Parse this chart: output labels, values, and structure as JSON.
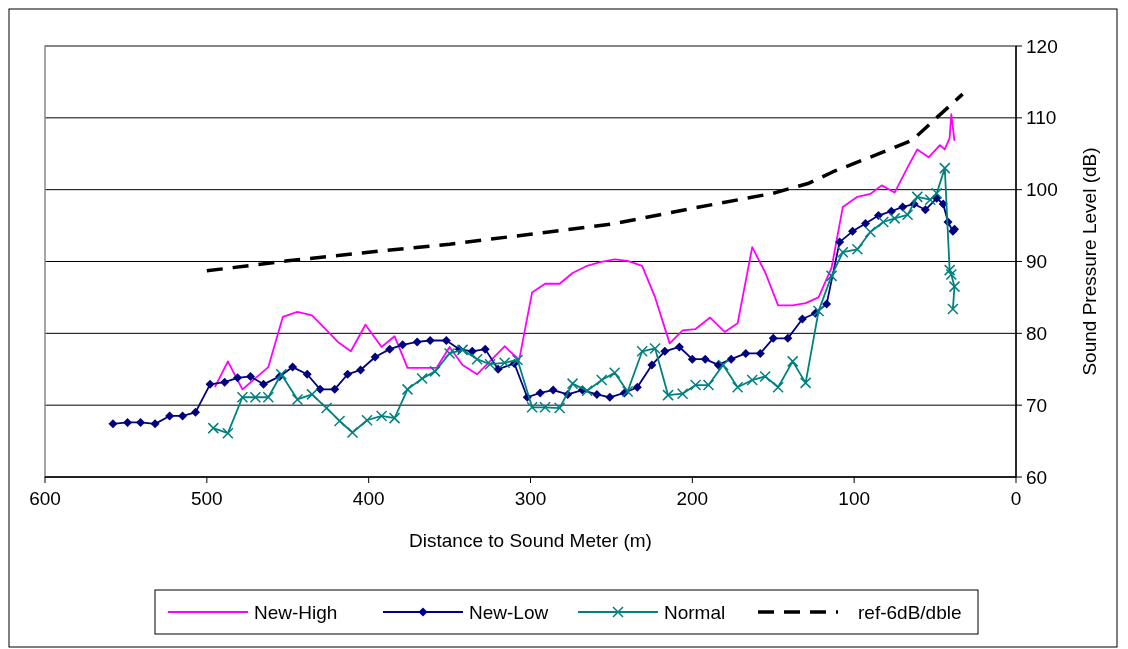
{
  "chart_data": {
    "type": "line",
    "xlabel": "Distance to Sound Meter (m)",
    "ylabel": "Sound Pressure Level (dB)",
    "xlim": [
      600,
      0
    ],
    "xticks": [
      600,
      500,
      400,
      300,
      200,
      100,
      0
    ],
    "ylim": [
      60,
      120
    ],
    "yticks": [
      60,
      70,
      80,
      90,
      100,
      110,
      120
    ],
    "grid": "y",
    "legend": "bottom",
    "series": [
      {
        "name": "New-High",
        "color": "#ff00ff",
        "marker": "none",
        "line_style": "solid",
        "x": [
          495,
          487,
          478,
          462,
          453,
          444,
          435,
          428,
          419,
          411,
          402,
          392,
          384,
          376,
          358,
          350,
          342,
          333,
          316,
          307,
          299,
          291,
          282,
          274,
          265,
          257,
          248,
          240,
          231,
          223,
          214,
          206,
          198,
          189,
          180,
          172,
          163,
          155,
          147,
          138,
          130,
          122,
          114,
          107,
          98,
          90,
          83,
          75,
          67,
          61,
          54,
          47,
          44,
          41,
          40,
          38
        ],
        "values": [
          72.5,
          76.1,
          72.2,
          75.3,
          82.3,
          83.0,
          82.5,
          80.9,
          78.8,
          77.5,
          81.2,
          78.1,
          79.6,
          75.2,
          75.2,
          78.1,
          75.6,
          74.3,
          78.2,
          76.3,
          85.7,
          86.9,
          86.9,
          88.4,
          89.4,
          89.9,
          90.3,
          90.1,
          89.4,
          85.0,
          78.6,
          80.4,
          80.6,
          82.2,
          80.2,
          81.4,
          92.0,
          88.5,
          83.9,
          83.9,
          84.2,
          85.0,
          89.1,
          97.6,
          99.0,
          99.4,
          100.6,
          99.6,
          103.1,
          105.6,
          104.5,
          106.2,
          105.6,
          107.2,
          110.5,
          106.8
        ]
      },
      {
        "name": "New-Low",
        "color": "#000080",
        "marker": "diamond",
        "line_style": "solid",
        "x": [
          558,
          549,
          541,
          532,
          523,
          515,
          507,
          498,
          489,
          481,
          473,
          465,
          455,
          447,
          438,
          430,
          421,
          413,
          405,
          396,
          387,
          379,
          370,
          362,
          352,
          344,
          336,
          328,
          320,
          310,
          302,
          294,
          286,
          277,
          268,
          259,
          251,
          242,
          234,
          225,
          217,
          208,
          200,
          192,
          184,
          176,
          167,
          158,
          150,
          141,
          132,
          124,
          117,
          109,
          101,
          93,
          85,
          77,
          70,
          63,
          56,
          49,
          45,
          42,
          39,
          38
        ],
        "values": [
          67.4,
          67.6,
          67.6,
          67.4,
          68.5,
          68.5,
          69.0,
          72.9,
          73.2,
          73.8,
          74.0,
          72.9,
          74.0,
          75.3,
          74.3,
          72.2,
          72.2,
          74.3,
          74.9,
          76.7,
          77.8,
          78.4,
          78.8,
          79.0,
          79.0,
          77.8,
          77.5,
          77.8,
          75.0,
          75.8,
          71.1,
          71.7,
          72.1,
          71.5,
          72.1,
          71.5,
          71.1,
          71.7,
          72.5,
          75.6,
          77.5,
          78.1,
          76.4,
          76.4,
          75.6,
          76.4,
          77.2,
          77.2,
          79.3,
          79.3,
          82.0,
          82.8,
          84.1,
          92.7,
          94.2,
          95.3,
          96.4,
          97.0,
          97.6,
          98.0,
          97.2,
          98.8,
          98.0,
          95.5,
          94.2,
          94.5
        ]
      },
      {
        "name": "Normal",
        "color": "#008080",
        "marker": "cross",
        "line_style": "solid",
        "x": [
          496,
          487,
          478,
          470,
          462,
          454,
          444,
          435,
          426,
          418,
          410,
          401,
          392,
          384,
          376,
          367,
          359,
          350,
          342,
          333,
          325,
          316,
          308,
          299,
          291,
          282,
          274,
          265,
          256,
          248,
          240,
          231,
          223,
          215,
          206,
          198,
          190,
          181,
          172,
          163,
          155,
          147,
          138,
          130,
          122,
          114,
          107,
          98,
          90,
          82,
          75,
          67,
          61,
          53,
          49,
          44,
          41,
          40,
          38,
          39
        ],
        "values": [
          66.8,
          66.1,
          71.1,
          71.1,
          71.1,
          74.3,
          70.8,
          71.5,
          69.6,
          67.8,
          66.2,
          67.9,
          68.5,
          68.2,
          72.2,
          73.7,
          74.7,
          77.2,
          77.7,
          76.4,
          75.7,
          75.9,
          76.3,
          69.7,
          69.7,
          69.6,
          73.0,
          72.0,
          73.5,
          74.5,
          71.9,
          77.5,
          77.9,
          71.4,
          71.6,
          72.8,
          72.8,
          75.6,
          72.5,
          73.5,
          74.0,
          72.5,
          76.1,
          73.1,
          83.1,
          88.0,
          91.3,
          91.7,
          94.1,
          95.5,
          96.0,
          96.5,
          99.0,
          98.6,
          99.5,
          103.0,
          88.8,
          88.2,
          86.5,
          83.4
        ]
      },
      {
        "name": "ref-6dB/dble",
        "color": "#000000",
        "marker": "none",
        "line_style": "dashed",
        "x": [
          500,
          450,
          400,
          350,
          300,
          250,
          200,
          150,
          128,
          113,
          78,
          64,
          52,
          33
        ],
        "values": [
          88.7,
          90.1,
          91.3,
          92.4,
          93.8,
          95.2,
          97.4,
          99.5,
          100.9,
          102.5,
          105.6,
          106.9,
          109.4,
          113.3
        ]
      }
    ]
  }
}
